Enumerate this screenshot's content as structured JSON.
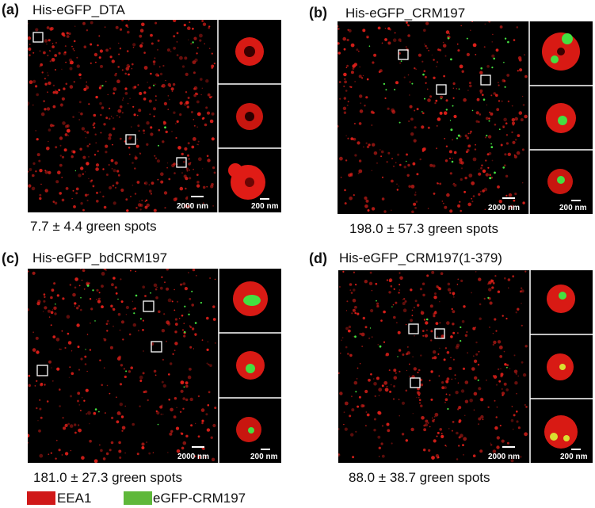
{
  "panels": [
    {
      "label": "(a)",
      "title": "His-eGFP_DTA",
      "stat": "7.7 ± 4.4 green spots",
      "scale_main": "2000 nm",
      "scale_inset": "200 nm"
    },
    {
      "label": "(b)",
      "title": "His-eGFP_CRM197",
      "stat": "198.0 ± 57.3 green spots",
      "scale_main": "2000 nm",
      "scale_inset": "200 nm"
    },
    {
      "label": "(c)",
      "title": "His-eGFP_bdCRM197",
      "stat": "181.0 ± 27.3 green spots",
      "scale_main": "2000 nm",
      "scale_inset": "200 nm"
    },
    {
      "label": "(d)",
      "title": "His-eGFP_CRM197(1-379)",
      "stat": "88.0 ± 38.7 green spots",
      "scale_main": "2000 nm",
      "scale_inset": "200 nm"
    }
  ],
  "legend": [
    {
      "label": "EEA1",
      "color": "#d01818"
    },
    {
      "label": "eGFP-CRM197",
      "color": "#5fb83a"
    }
  ],
  "colors": {
    "red_channel": "#e0201a",
    "green_channel": "#44e040",
    "background": "#000000"
  }
}
